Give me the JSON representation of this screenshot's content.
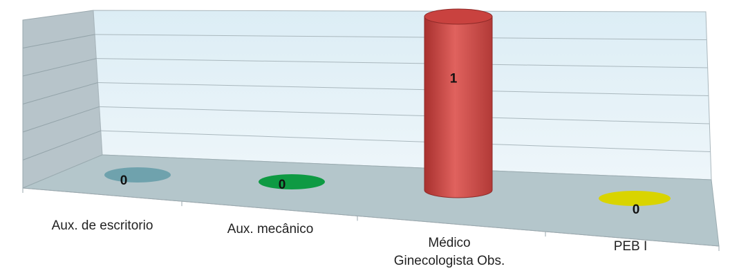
{
  "chart_data": {
    "type": "bar",
    "style": "3d-cylinder",
    "title": "",
    "xlabel": "",
    "ylabel": "",
    "categories": [
      [
        "Aux. de escritorio"
      ],
      [
        "Aux. mecânico"
      ],
      [
        "Médico",
        "Ginecologista Obs."
      ],
      [
        "PEB I"
      ]
    ],
    "values": [
      0,
      0,
      1,
      0
    ],
    "data_labels": [
      "0",
      "0",
      "1",
      "0"
    ],
    "colors": [
      "#6fa2ad",
      "#0e9a43",
      "#cf4a47",
      "#d9d400"
    ],
    "ylim": [
      0,
      1
    ],
    "grid": true,
    "legend": "none",
    "wall_color": "#e4f1f7",
    "floor_color": "#b4c7cc",
    "side_wall_color": "#b9c6cc"
  }
}
